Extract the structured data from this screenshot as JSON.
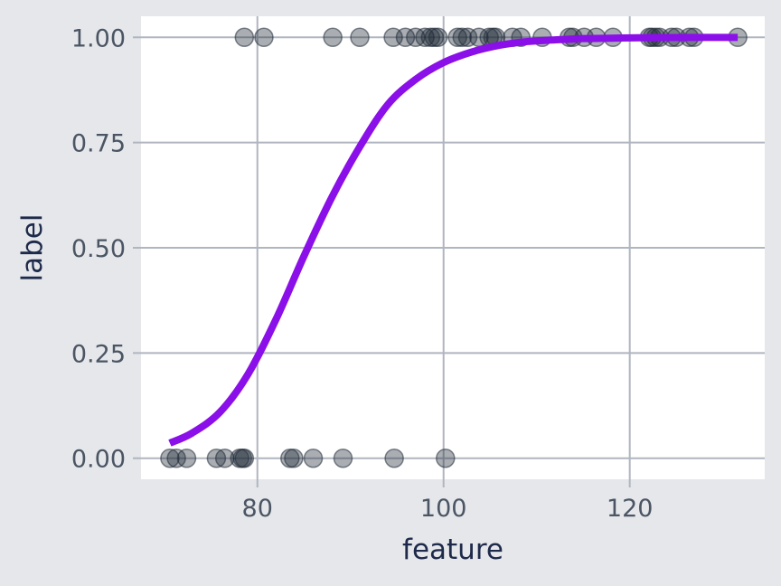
{
  "chart_data": {
    "type": "scatter",
    "title": "",
    "xlabel": "feature",
    "ylabel": "label",
    "xlim": [
      67.5,
      134.5
    ],
    "ylim": [
      -0.05,
      1.05
    ],
    "x_ticks": [
      80,
      100,
      120
    ],
    "x_tick_labels": [
      "80",
      "100",
      "120"
    ],
    "y_ticks": [
      0,
      0.25,
      0.5,
      0.75,
      1
    ],
    "y_tick_labels": [
      "0.00",
      "0.25",
      "0.50",
      "0.75",
      "1.00"
    ],
    "grid": true,
    "colors": {
      "background": "#e5e7eb",
      "panel": "#ffffff",
      "grid": "#b0b5bf",
      "points": "#1f2937",
      "curve": "#8b0fe8"
    },
    "series": [
      {
        "kind": "points",
        "x": [
          70.6,
          71.3,
          72.4,
          75.6,
          76.5,
          78.1,
          78.4,
          78.6,
          83.5,
          83.9,
          86.0,
          89.2,
          94.7,
          100.2,
          78.6,
          80.7,
          88.1,
          91.0,
          94.6,
          95.9,
          97.0,
          98.0,
          98.6,
          99.0,
          99.4,
          101.5,
          102.0,
          102.6,
          103.8,
          104.9,
          105.3,
          105.6,
          107.4,
          108.3,
          110.6,
          113.5,
          113.9,
          115.1,
          116.4,
          118.2,
          122.1,
          122.4,
          122.8,
          123.2,
          124.5,
          125.0,
          126.4,
          126.9,
          131.6
        ],
        "y": [
          0,
          0,
          0,
          0,
          0,
          0,
          0,
          0,
          0,
          0,
          0,
          0,
          0,
          0,
          1,
          1,
          1,
          1,
          1,
          1,
          1,
          1,
          1,
          1,
          1,
          1,
          1,
          1,
          1,
          1,
          1,
          1,
          1,
          1,
          1,
          1,
          1,
          1,
          1,
          1,
          1,
          1,
          1,
          1,
          1,
          1,
          1,
          1,
          1
        ]
      },
      {
        "kind": "fitted-curve",
        "x": [
          70.6,
          73,
          76,
          79,
          82,
          85,
          88,
          91,
          94,
          97,
          100,
          103,
          106,
          109,
          112,
          115,
          118,
          121,
          124,
          127,
          131.6
        ],
        "y": [
          0.036,
          0.06,
          0.11,
          0.2,
          0.33,
          0.48,
          0.62,
          0.74,
          0.84,
          0.9,
          0.94,
          0.965,
          0.981,
          0.99,
          0.994,
          0.997,
          0.998,
          0.999,
          0.9995,
          0.9998,
          0.9999
        ]
      }
    ]
  }
}
